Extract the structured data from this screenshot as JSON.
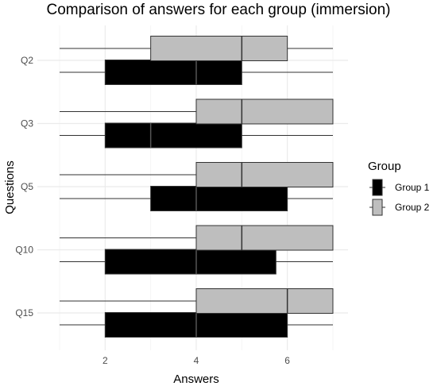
{
  "chart_data": {
    "type": "boxplot",
    "orientation": "horizontal",
    "title": "Comparison of answers for each group (immersion)",
    "xlabel": "Answers",
    "ylabel": "Questions",
    "xlim": [
      1,
      7
    ],
    "x_ticks": [
      2,
      4,
      6
    ],
    "grid": true,
    "categories": [
      "Q2",
      "Q3",
      "Q5",
      "Q10",
      "Q15"
    ],
    "legend": {
      "title": "Group",
      "placement": "right",
      "entries": [
        "Group 1",
        "Group 2"
      ]
    },
    "series": [
      {
        "name": "Group 1",
        "color": "#000000",
        "boxes": [
          {
            "category": "Q2",
            "min": 1,
            "q1": 2,
            "median": 4,
            "q3": 5,
            "max": 7
          },
          {
            "category": "Q3",
            "min": 1,
            "q1": 2,
            "median": 3,
            "q3": 5,
            "max": 7
          },
          {
            "category": "Q5",
            "min": 1,
            "q1": 3,
            "median": 4,
            "q3": 6,
            "max": 7
          },
          {
            "category": "Q10",
            "min": 1,
            "q1": 2,
            "median": 4,
            "q3": 5.75,
            "max": 7
          },
          {
            "category": "Q15",
            "min": 1,
            "q1": 2,
            "median": 4,
            "q3": 6,
            "max": 7
          }
        ]
      },
      {
        "name": "Group 2",
        "color": "#bebebe",
        "boxes": [
          {
            "category": "Q2",
            "min": 1,
            "q1": 3,
            "median": 5,
            "q3": 6,
            "max": 7
          },
          {
            "category": "Q3",
            "min": 1,
            "q1": 4,
            "median": 5,
            "q3": 7,
            "max": 7
          },
          {
            "category": "Q5",
            "min": 1,
            "q1": 4,
            "median": 5,
            "q3": 7,
            "max": 7
          },
          {
            "category": "Q10",
            "min": 1,
            "q1": 4,
            "median": 5,
            "q3": 7,
            "max": 7
          },
          {
            "category": "Q15",
            "min": 1,
            "q1": 4,
            "median": 6,
            "q3": 7,
            "max": 7
          }
        ]
      }
    ]
  }
}
